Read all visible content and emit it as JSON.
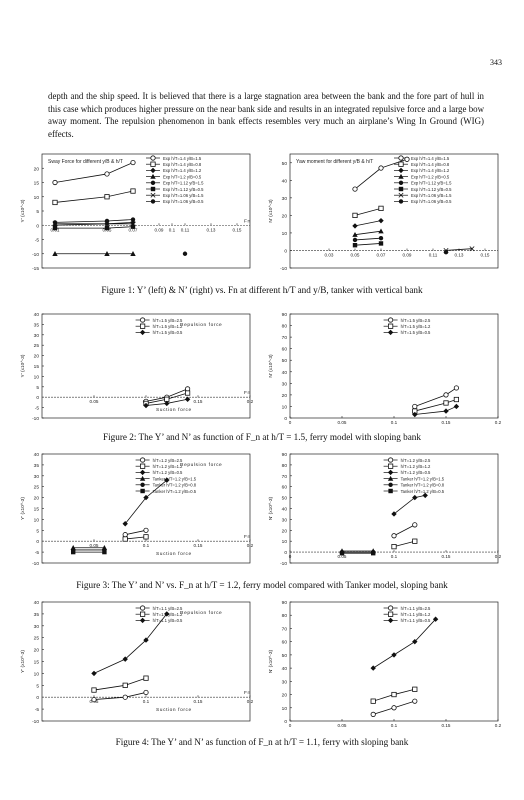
{
  "page_number": "343",
  "paragraph": "depth and the ship speed. It is believed that there is a large stagnation area between the bank and the fore part of hull in this case which produces higher pressure on the near bank side and results in an integrated repulsive force and a large bow away moment. The repulsion phenomenon in bank effects resembles very much an airplane’s Wing In Ground (WIG) effects.",
  "captions": {
    "fig1": "Figure 1: Y’ (left) & N’ (right) vs. Fn at different h/T and y/B, tanker with vertical bank",
    "fig2": "Figure 2: The Y’ and N’ as function of F_n at h/T = 1.5, ferry model with sloping bank",
    "fig3": "Figure 3: The Y’ and N’ vs. F_n at h/T = 1.2, ferry model compared with Tanker model, sloping bank",
    "fig4": "Figure 4: The Y’ and N’ as function of F_n at h/T = 1.1, ferry with sloping bank"
  },
  "chart_data": [
    {
      "id": "fig1-left",
      "type": "line",
      "title": "Sway Force for different y/B & h/T",
      "ylabel": "Y' (x10^-3)",
      "xlim": [
        0,
        0.16
      ],
      "ylim": [
        -15,
        25
      ],
      "yticks": [
        "20",
        "15",
        "10",
        "5",
        "0",
        "-5",
        "-10",
        "-15"
      ],
      "xticks": [
        "0.01",
        "0.05",
        "0.07",
        "0.09",
        "0.1",
        "0.11",
        "0.13",
        "0.15"
      ],
      "xtick_pos": [
        0.01,
        0.05,
        0.07,
        0.09,
        0.1,
        0.11,
        0.13,
        0.15
      ],
      "series": [
        {
          "name": "Exp h/T=1.4 y/B=1.5",
          "values": [
            [
              0.01,
              15
            ],
            [
              0.05,
              18
            ],
            [
              0.07,
              22
            ]
          ]
        },
        {
          "name": "Exp h/T=1.4 y/B=0.8",
          "values": [
            [
              0.01,
              8
            ],
            [
              0.05,
              10
            ],
            [
              0.07,
              12
            ]
          ]
        },
        {
          "name": "Exp h/T=1.4 y/B=1.2",
          "values": [
            [
              0.01,
              0
            ],
            [
              0.05,
              0.5
            ],
            [
              0.07,
              1
            ]
          ]
        },
        {
          "name": "Exp h/T=1.2 y/B=0.5",
          "values": [
            [
              0.01,
              -10
            ],
            [
              0.05,
              -10
            ],
            [
              0.07,
              -10
            ]
          ]
        },
        {
          "name": "Exp h/T=1.12 y/B=1.5",
          "values": [
            [
              0.01,
              1
            ],
            [
              0.05,
              1.5
            ],
            [
              0.07,
              2
            ]
          ]
        },
        {
          "name": "Exp h/T=1.12 y/B=0.5",
          "values": [
            [
              0.01,
              -1
            ],
            [
              0.05,
              -1
            ],
            [
              0.07,
              -0.5
            ]
          ]
        },
        {
          "name": "Exp h/T=1.06 y/B=1.5",
          "values": [
            [
              0.01,
              0.5
            ],
            [
              0.05,
              0.5
            ],
            [
              0.07,
              0.5
            ]
          ]
        },
        {
          "name": "Exp h/T=1.06 y/B=0.5",
          "values": [
            [
              0.11,
              -10
            ]
          ]
        }
      ],
      "annotations": [
        "0.05",
        "0.07",
        "0.09",
        "0.11",
        "0.13",
        "Fn"
      ]
    },
    {
      "id": "fig1-right",
      "type": "line",
      "title": "Yaw moment for different y/B & h/T",
      "ylabel": "N' (x10^-3)",
      "xlim": [
        0,
        0.16
      ],
      "ylim": [
        -10,
        55
      ],
      "yticks": [
        "50",
        "40",
        "30",
        "20",
        "10",
        "0",
        "-10"
      ],
      "xticks": [
        "0.03",
        "0.05",
        "0.07",
        "0.09",
        "0.11",
        "0.13",
        "0.15"
      ],
      "xtick_pos": [
        0.03,
        0.05,
        0.07,
        0.09,
        0.11,
        0.13,
        0.15
      ],
      "series": [
        {
          "name": "Exp h/T=1.4 y/B=1.5",
          "values": [
            [
              0.05,
              35
            ],
            [
              0.07,
              47
            ],
            [
              0.09,
              52
            ]
          ]
        },
        {
          "name": "Exp h/T=1.4 y/B=0.8",
          "values": [
            [
              0.05,
              20
            ],
            [
              0.07,
              24
            ]
          ]
        },
        {
          "name": "Exp h/T=1.4 y/B=1.2",
          "values": [
            [
              0.05,
              14
            ],
            [
              0.07,
              17
            ]
          ]
        },
        {
          "name": "Exp h/T=1.2 y/B=0.5",
          "values": [
            [
              0.05,
              9
            ],
            [
              0.07,
              11
            ]
          ]
        },
        {
          "name": "Exp h/T=1.12 y/B=1.5",
          "values": [
            [
              0.05,
              6
            ],
            [
              0.07,
              7
            ]
          ]
        },
        {
          "name": "Exp h/T=1.12 y/B=0.5",
          "values": [
            [
              0.05,
              3
            ],
            [
              0.07,
              4
            ]
          ]
        },
        {
          "name": "Exp h/T=1.06 y/B=1.5",
          "values": [
            [
              0.12,
              0
            ],
            [
              0.14,
              1
            ]
          ]
        },
        {
          "name": "Exp h/T=1.06 y/B=0.5",
          "values": [
            [
              0.12,
              -1
            ]
          ]
        }
      ]
    },
    {
      "id": "fig2-left",
      "type": "line",
      "ylabel": "Y' (x10^-3)",
      "xlim": [
        0,
        0.2
      ],
      "ylim": [
        -10,
        40
      ],
      "yticks": [
        "40",
        "35",
        "30",
        "25",
        "20",
        "15",
        "10",
        "5",
        "0",
        "-5",
        "-10"
      ],
      "xticks": [
        "0.05",
        "0.1",
        "0.15",
        "0.2"
      ],
      "xtick_pos": [
        0.05,
        0.1,
        0.15,
        0.2
      ],
      "annotations": [
        "Repulsion force",
        "Suction force",
        "Fn"
      ],
      "series": [
        {
          "name": "h/T=1.5 y/B=2.5",
          "values": [
            [
              0.1,
              -2
            ],
            [
              0.12,
              0
            ],
            [
              0.14,
              4
            ]
          ]
        },
        {
          "name": "h/T=1.5 y/B=1.2",
          "values": [
            [
              0.1,
              -3
            ],
            [
              0.12,
              -1
            ],
            [
              0.14,
              2
            ]
          ]
        },
        {
          "name": "h/T=1.5 y/B=0.5",
          "values": [
            [
              0.1,
              -4
            ],
            [
              0.12,
              -3
            ],
            [
              0.14,
              -1
            ]
          ]
        }
      ]
    },
    {
      "id": "fig2-right",
      "type": "line",
      "ylabel": "N' (x10^-3)",
      "xlim": [
        0,
        0.2
      ],
      "ylim": [
        0,
        90
      ],
      "yticks": [
        "90",
        "80",
        "70",
        "60",
        "50",
        "40",
        "30",
        "20",
        "10",
        "0"
      ],
      "xticks": [
        "0",
        "0.05",
        "0.1",
        "0.15",
        "0.2"
      ],
      "xtick_pos": [
        0,
        0.05,
        0.1,
        0.15,
        0.2
      ],
      "series": [
        {
          "name": "h/T=1.5 y/B=2.5",
          "values": [
            [
              0.12,
              10
            ],
            [
              0.15,
              20
            ],
            [
              0.16,
              26
            ]
          ]
        },
        {
          "name": "h/T=1.5 y/B=1.2",
          "values": [
            [
              0.12,
              6
            ],
            [
              0.15,
              13
            ],
            [
              0.16,
              16
            ]
          ]
        },
        {
          "name": "h/T=1.5 y/B=0.5",
          "values": [
            [
              0.12,
              3
            ],
            [
              0.15,
              6
            ],
            [
              0.16,
              10
            ]
          ]
        }
      ]
    },
    {
      "id": "fig3-left",
      "type": "line",
      "ylabel": "Y' (x10^-3)",
      "xlim": [
        0,
        0.2
      ],
      "ylim": [
        -10,
        40
      ],
      "yticks": [
        "40",
        "35",
        "30",
        "25",
        "20",
        "15",
        "10",
        "5",
        "0",
        "-5",
        "-10"
      ],
      "xticks": [
        "0.05",
        "0.1",
        "0.15",
        "0.2"
      ],
      "xtick_pos": [
        0.05,
        0.1,
        0.15,
        0.2
      ],
      "annotations": [
        "Repulsion force",
        "Suction force",
        "Fn"
      ],
      "series": [
        {
          "name": "h/T=1.2 y/B=2.5",
          "values": [
            [
              0.08,
              3
            ],
            [
              0.1,
              5
            ]
          ]
        },
        {
          "name": "h/T=1.2 y/B=1.2",
          "values": [
            [
              0.08,
              1
            ],
            [
              0.1,
              2
            ]
          ]
        },
        {
          "name": "h/T=1.2 y/B=0.5",
          "values": [
            [
              0.08,
              8
            ],
            [
              0.1,
              20
            ],
            [
              0.12,
              28
            ]
          ]
        },
        {
          "name": "Tanker h/T=1.2 y/B=1.5",
          "values": [
            [
              0.03,
              -3
            ],
            [
              0.06,
              -3
            ]
          ]
        },
        {
          "name": "Tanker h/T=1.2 y/B=0.8",
          "values": [
            [
              0.03,
              -4
            ],
            [
              0.06,
              -4
            ]
          ]
        },
        {
          "name": "Tanker h/T=1.2 y/B=0.5",
          "values": [
            [
              0.03,
              -5
            ],
            [
              0.06,
              -5
            ]
          ]
        }
      ]
    },
    {
      "id": "fig3-right",
      "type": "line",
      "ylabel": "N' (x10^-3)",
      "xlim": [
        0,
        0.2
      ],
      "ylim": [
        -10,
        90
      ],
      "yticks": [
        "90",
        "80",
        "70",
        "60",
        "50",
        "40",
        "30",
        "20",
        "10",
        "0",
        "-10"
      ],
      "xticks": [
        "0",
        "0.05",
        "0.1",
        "0.15",
        "0.2"
      ],
      "xtick_pos": [
        0,
        0.05,
        0.1,
        0.15,
        0.2
      ],
      "series": [
        {
          "name": "h/T=1.2 y/B=2.5",
          "values": [
            [
              0.1,
              15
            ],
            [
              0.12,
              25
            ]
          ]
        },
        {
          "name": "h/T=1.2 y/B=1.2",
          "values": [
            [
              0.1,
              5
            ],
            [
              0.12,
              10
            ]
          ]
        },
        {
          "name": "h/T=1.2 y/B=0.5",
          "values": [
            [
              0.1,
              35
            ],
            [
              0.12,
              50
            ],
            [
              0.13,
              52
            ]
          ]
        },
        {
          "name": "Tanker h/T=1.2 y/B=1.5",
          "values": [
            [
              0.05,
              1
            ],
            [
              0.08,
              1
            ]
          ]
        },
        {
          "name": "Tanker h/T=1.2 y/B=0.8",
          "values": [
            [
              0.05,
              0
            ],
            [
              0.08,
              0
            ]
          ]
        },
        {
          "name": "Tanker h/T=1.2 y/B=0.5",
          "values": [
            [
              0.05,
              -1
            ],
            [
              0.08,
              -1
            ]
          ]
        }
      ]
    },
    {
      "id": "fig4-left",
      "type": "line",
      "ylabel": "Y' (x10^-3)",
      "xlim": [
        0,
        0.2
      ],
      "ylim": [
        -10,
        40
      ],
      "yticks": [
        "40",
        "35",
        "30",
        "25",
        "20",
        "15",
        "10",
        "5",
        "0",
        "-5",
        "-10"
      ],
      "xticks": [
        "0.05",
        "0.1",
        "0.15",
        "0.2"
      ],
      "xtick_pos": [
        0.05,
        0.1,
        0.15,
        0.2
      ],
      "annotations": [
        "Repulsion force",
        "Suction force",
        "Fn"
      ],
      "series": [
        {
          "name": "h/T=1.1 y/B=2.5",
          "values": [
            [
              0.05,
              -1
            ],
            [
              0.08,
              0
            ],
            [
              0.1,
              2
            ]
          ]
        },
        {
          "name": "h/T=1.1 y/B=1.2",
          "values": [
            [
              0.05,
              3
            ],
            [
              0.08,
              5
            ],
            [
              0.1,
              8
            ]
          ]
        },
        {
          "name": "h/T=1.1 y/B=0.5",
          "values": [
            [
              0.05,
              10
            ],
            [
              0.08,
              16
            ],
            [
              0.1,
              24
            ],
            [
              0.12,
              35
            ]
          ]
        }
      ]
    },
    {
      "id": "fig4-right",
      "type": "line",
      "ylabel": "N' (x10^-3)",
      "xlim": [
        0,
        0.2
      ],
      "ylim": [
        0,
        90
      ],
      "yticks": [
        "90",
        "80",
        "70",
        "60",
        "50",
        "40",
        "30",
        "20",
        "10",
        "0"
      ],
      "xticks": [
        "0",
        "0.05",
        "0.1",
        "0.15",
        "0.2"
      ],
      "xtick_pos": [
        0,
        0.05,
        0.1,
        0.15,
        0.2
      ],
      "series": [
        {
          "name": "h/T=1.1 y/B=2.5",
          "values": [
            [
              0.08,
              5
            ],
            [
              0.1,
              10
            ],
            [
              0.12,
              15
            ]
          ]
        },
        {
          "name": "h/T=1.1 y/B=1.2",
          "values": [
            [
              0.08,
              15
            ],
            [
              0.1,
              20
            ],
            [
              0.12,
              24
            ]
          ]
        },
        {
          "name": "h/T=1.1 y/B=0.5",
          "values": [
            [
              0.08,
              40
            ],
            [
              0.1,
              50
            ],
            [
              0.12,
              60
            ],
            [
              0.14,
              77
            ]
          ]
        }
      ]
    }
  ]
}
